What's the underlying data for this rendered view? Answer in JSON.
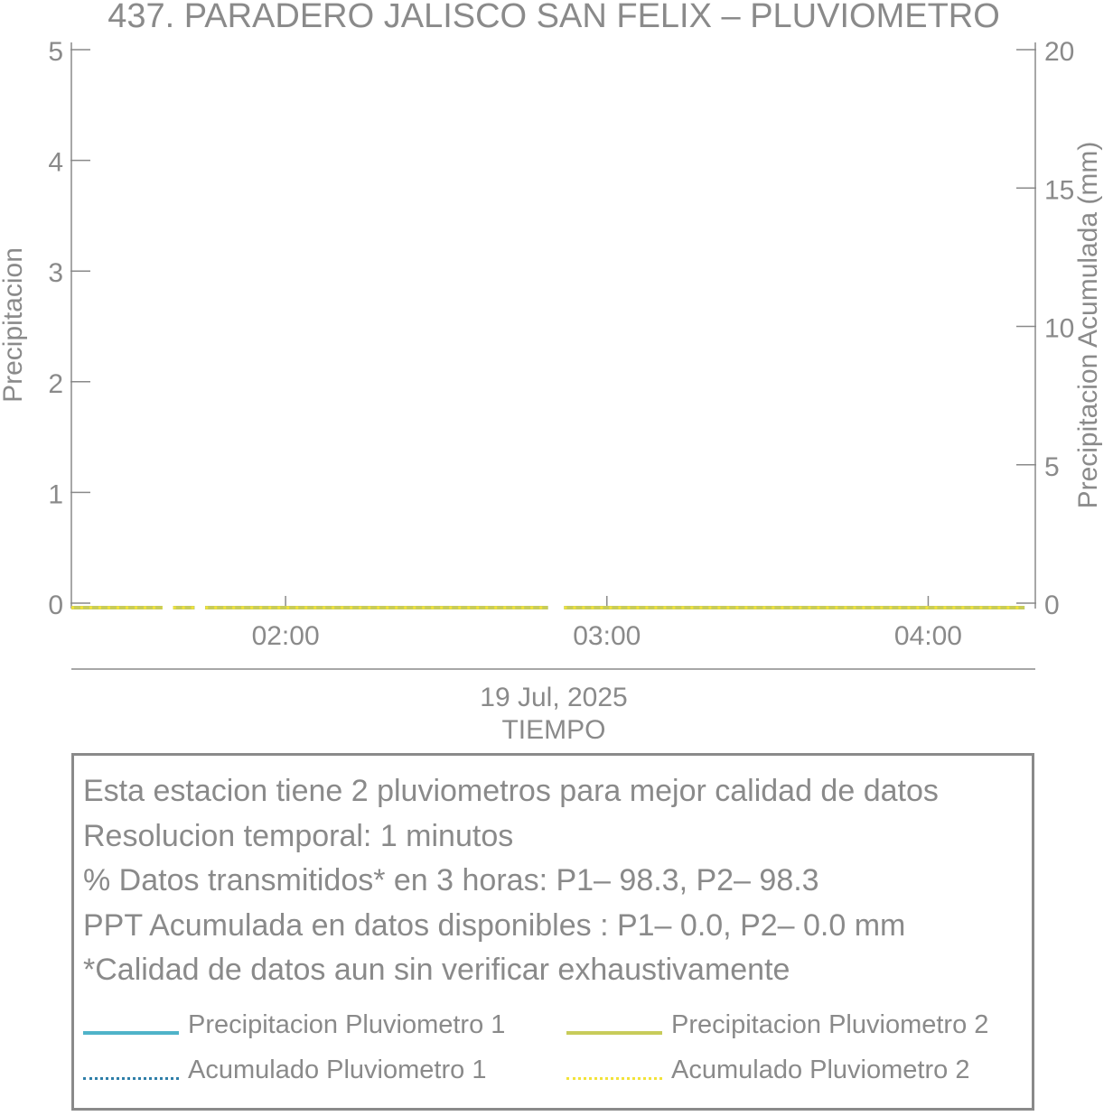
{
  "chart_data": {
    "type": "line",
    "title": "437. PARADERO JALISCO SAN FELIX – PLUVIOMETRO",
    "xlabel": "TIEMPO",
    "xlabel_date": "19 Jul, 2025",
    "ylabel": "Precipitacion",
    "y2label": "Precipitacion Acumulada (mm)",
    "ylim": [
      0,
      5
    ],
    "y2lim": [
      0,
      20
    ],
    "yticks": [
      "0",
      "1",
      "2",
      "3",
      "4",
      "5"
    ],
    "y2ticks": [
      "0",
      "5",
      "10",
      "15",
      "20"
    ],
    "xlim": [
      "2025-07-19T01:20",
      "2025-07-19T04:20"
    ],
    "xticks": [
      {
        "time": "2025-07-19T02:00",
        "label": "02:00"
      },
      {
        "time": "2025-07-19T03:00",
        "label": "03:00"
      },
      {
        "time": "2025-07-19T04:00",
        "label": "04:00"
      }
    ],
    "grid": false,
    "series": [
      {
        "name": "Precipitacion Pluviometro 1",
        "axis": "left",
        "style": "solid",
        "color": "#4fb3c9",
        "segments": [
          {
            "x": [
              "2025-07-19T01:20",
              "2025-07-19T01:37"
            ],
            "y": [
              0,
              0
            ]
          },
          {
            "x": [
              "2025-07-19T01:39",
              "2025-07-19T01:43"
            ],
            "y": [
              0,
              0
            ]
          },
          {
            "x": [
              "2025-07-19T01:45",
              "2025-07-19T02:49"
            ],
            "y": [
              0,
              0
            ]
          },
          {
            "x": [
              "2025-07-19T02:52",
              "2025-07-19T04:18"
            ],
            "y": [
              0,
              0
            ]
          }
        ]
      },
      {
        "name": "Precipitacion Pluviometro 2",
        "axis": "left",
        "style": "solid",
        "color": "#c8cc5a",
        "segments": [
          {
            "x": [
              "2025-07-19T01:20",
              "2025-07-19T01:37"
            ],
            "y": [
              0,
              0
            ]
          },
          {
            "x": [
              "2025-07-19T01:39",
              "2025-07-19T01:43"
            ],
            "y": [
              0,
              0
            ]
          },
          {
            "x": [
              "2025-07-19T01:45",
              "2025-07-19T02:49"
            ],
            "y": [
              0,
              0
            ]
          },
          {
            "x": [
              "2025-07-19T02:52",
              "2025-07-19T04:18"
            ],
            "y": [
              0,
              0
            ]
          }
        ]
      },
      {
        "name": "Acumulado Pluviometro 1",
        "axis": "right",
        "style": "dotted",
        "color": "#2f7fa8",
        "segments": [
          {
            "x": [
              "2025-07-19T01:20",
              "2025-07-19T01:37"
            ],
            "y": [
              0,
              0
            ]
          },
          {
            "x": [
              "2025-07-19T01:39",
              "2025-07-19T01:43"
            ],
            "y": [
              0,
              0
            ]
          },
          {
            "x": [
              "2025-07-19T01:45",
              "2025-07-19T02:49"
            ],
            "y": [
              0,
              0
            ]
          },
          {
            "x": [
              "2025-07-19T02:52",
              "2025-07-19T04:18"
            ],
            "y": [
              0,
              0
            ]
          }
        ]
      },
      {
        "name": "Acumulado Pluviometro 2",
        "axis": "right",
        "style": "dotted",
        "color": "#f2e33a",
        "segments": [
          {
            "x": [
              "2025-07-19T01:20",
              "2025-07-19T01:37"
            ],
            "y": [
              0,
              0
            ]
          },
          {
            "x": [
              "2025-07-19T01:39",
              "2025-07-19T01:43"
            ],
            "y": [
              0,
              0
            ]
          },
          {
            "x": [
              "2025-07-19T01:45",
              "2025-07-19T02:49"
            ],
            "y": [
              0,
              0
            ]
          },
          {
            "x": [
              "2025-07-19T02:52",
              "2025-07-19T04:18"
            ],
            "y": [
              0,
              0
            ]
          }
        ]
      }
    ]
  },
  "info": {
    "lines": [
      "Esta estacion tiene 2 pluviometros para mejor calidad de datos",
      "Resolucion temporal: 1 minutos",
      "% Datos transmitidos* en 3 horas: P1– 98.3, P2– 98.3",
      "PPT Acumulada en datos disponibles : P1–  0.0, P2–  0.0 mm",
      "*Calidad de datos aun sin verificar exhaustivamente"
    ]
  },
  "legend": [
    {
      "label": "Precipitacion Pluviometro 1",
      "style": "solid",
      "color": "#4fb3c9"
    },
    {
      "label": "Precipitacion Pluviometro 2",
      "style": "solid",
      "color": "#c8cc5a"
    },
    {
      "label": "Acumulado Pluviometro 1",
      "style": "dotted",
      "color": "#2f7fa8"
    },
    {
      "label": "Acumulado Pluviometro 2",
      "style": "dotted",
      "color": "#f2e33a"
    }
  ]
}
